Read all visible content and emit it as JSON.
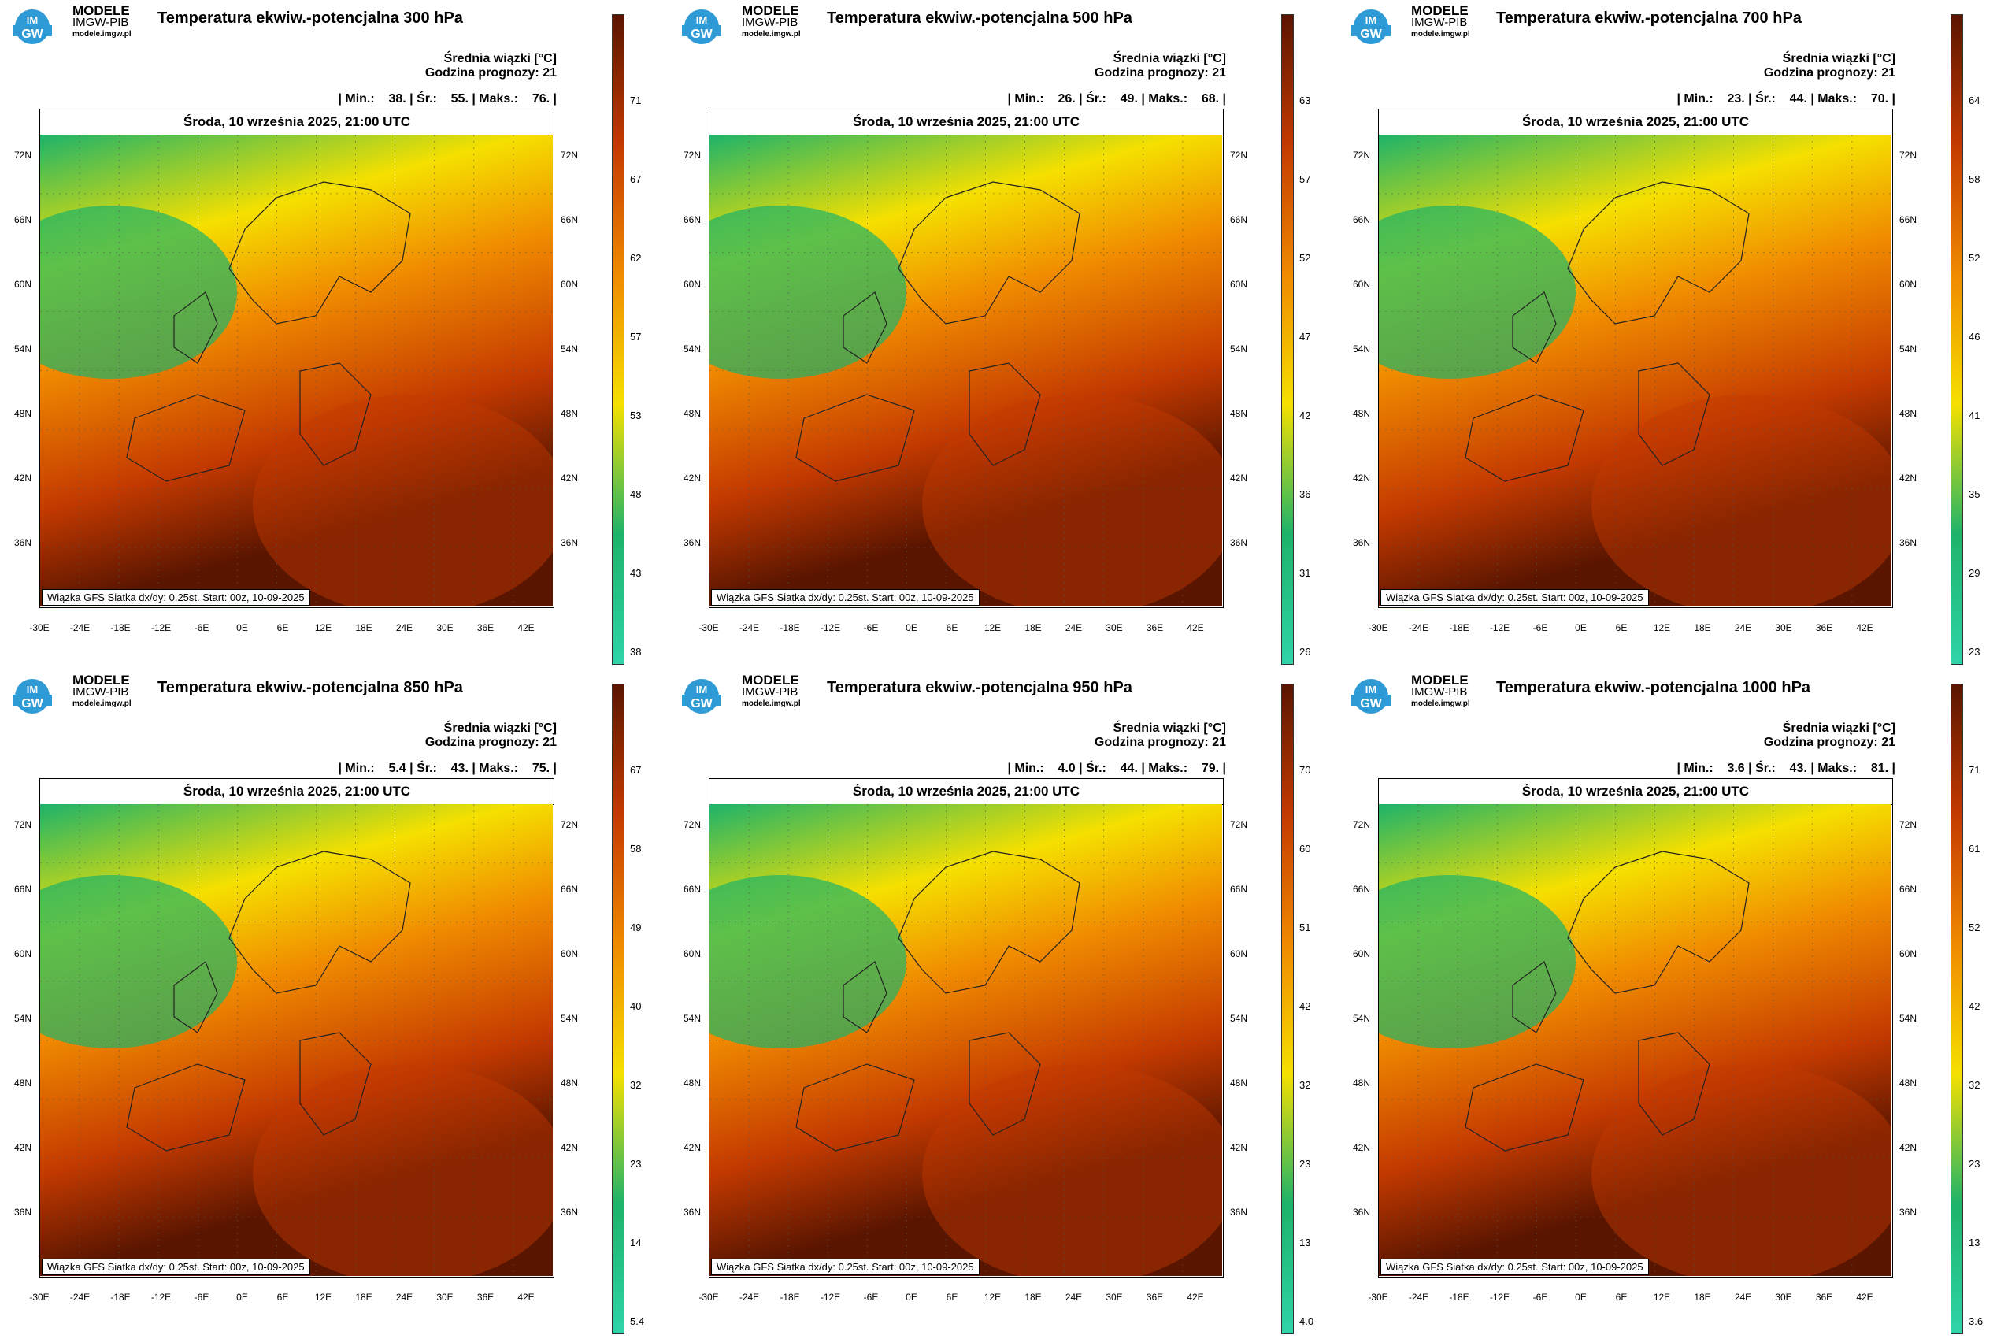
{
  "logo": {
    "line1": "MODELE",
    "line2": "IMGW-PIB",
    "line3": "modele.imgw.pl",
    "badge": "IM GW"
  },
  "common": {
    "mean_label": "Średnia wiązki [°C]",
    "forecast_hour": "Godzina prognozy: 21",
    "date": "Środa, 10 września 2025, 21:00 UTC",
    "footnote": "Wiązka GFS Siatka dx/dy: 0.25st. Start: 00z, 10-09-2025",
    "lat_labels": [
      "72N",
      "66N",
      "60N",
      "54N",
      "48N",
      "42N",
      "36N"
    ],
    "lon_labels": [
      "-30E",
      "-24E",
      "-18E",
      "-12E",
      "-6E",
      "0E",
      "6E",
      "12E",
      "18E",
      "24E",
      "30E",
      "36E",
      "42E"
    ]
  },
  "colors": {
    "cold": "#2fd4a8",
    "green": "#1db36a",
    "yellow": "#f5e000",
    "orange": "#f08a00",
    "red": "#c43a00",
    "darkred": "#5a1500"
  },
  "panels": [
    {
      "title": "Temperatura ekwiw.-potencjalna 300 hPa",
      "stats": "| Min.:    38. | Śr.:    55. | Maks.:    76. |",
      "cbar": [
        "71",
        "67",
        "62",
        "57",
        "53",
        "48",
        "43",
        "38"
      ],
      "warmth": 0.55
    },
    {
      "title": "Temperatura ekwiw.-potencjalna 500 hPa",
      "stats": "| Min.:    26. | Śr.:    49. | Maks.:    68. |",
      "cbar": [
        "63",
        "57",
        "52",
        "47",
        "42",
        "36",
        "31",
        "26"
      ],
      "warmth": 0.62
    },
    {
      "title": "Temperatura ekwiw.-potencjalna 700 hPa",
      "stats": "| Min.:    23. | Śr.:    44. | Maks.:    70. |",
      "cbar": [
        "64",
        "58",
        "52",
        "46",
        "41",
        "35",
        "29",
        "23"
      ],
      "warmth": 0.5
    },
    {
      "title": "Temperatura ekwiw.-potencjalna 850 hPa",
      "stats": "| Min.:    5.4 | Śr.:    43. | Maks.:    75. |",
      "cbar": [
        "67",
        "58",
        "49",
        "40",
        "32",
        "23",
        "14",
        "5.4"
      ],
      "warmth": 0.6
    },
    {
      "title": "Temperatura ekwiw.-potencjalna 950 hPa",
      "stats": "| Min.:    4.0 | Śr.:    44. | Maks.:    79. |",
      "cbar": [
        "70",
        "60",
        "51",
        "42",
        "32",
        "23",
        "13",
        "4.0"
      ],
      "warmth": 0.6
    },
    {
      "title": "Temperatura ekwiw.-potencjalna 1000 hPa",
      "stats": "| Min.:    3.6 | Śr.:    43. | Maks.:    81. |",
      "cbar": [
        "71",
        "61",
        "52",
        "42",
        "32",
        "23",
        "13",
        "3.6"
      ],
      "warmth": 0.6
    }
  ]
}
